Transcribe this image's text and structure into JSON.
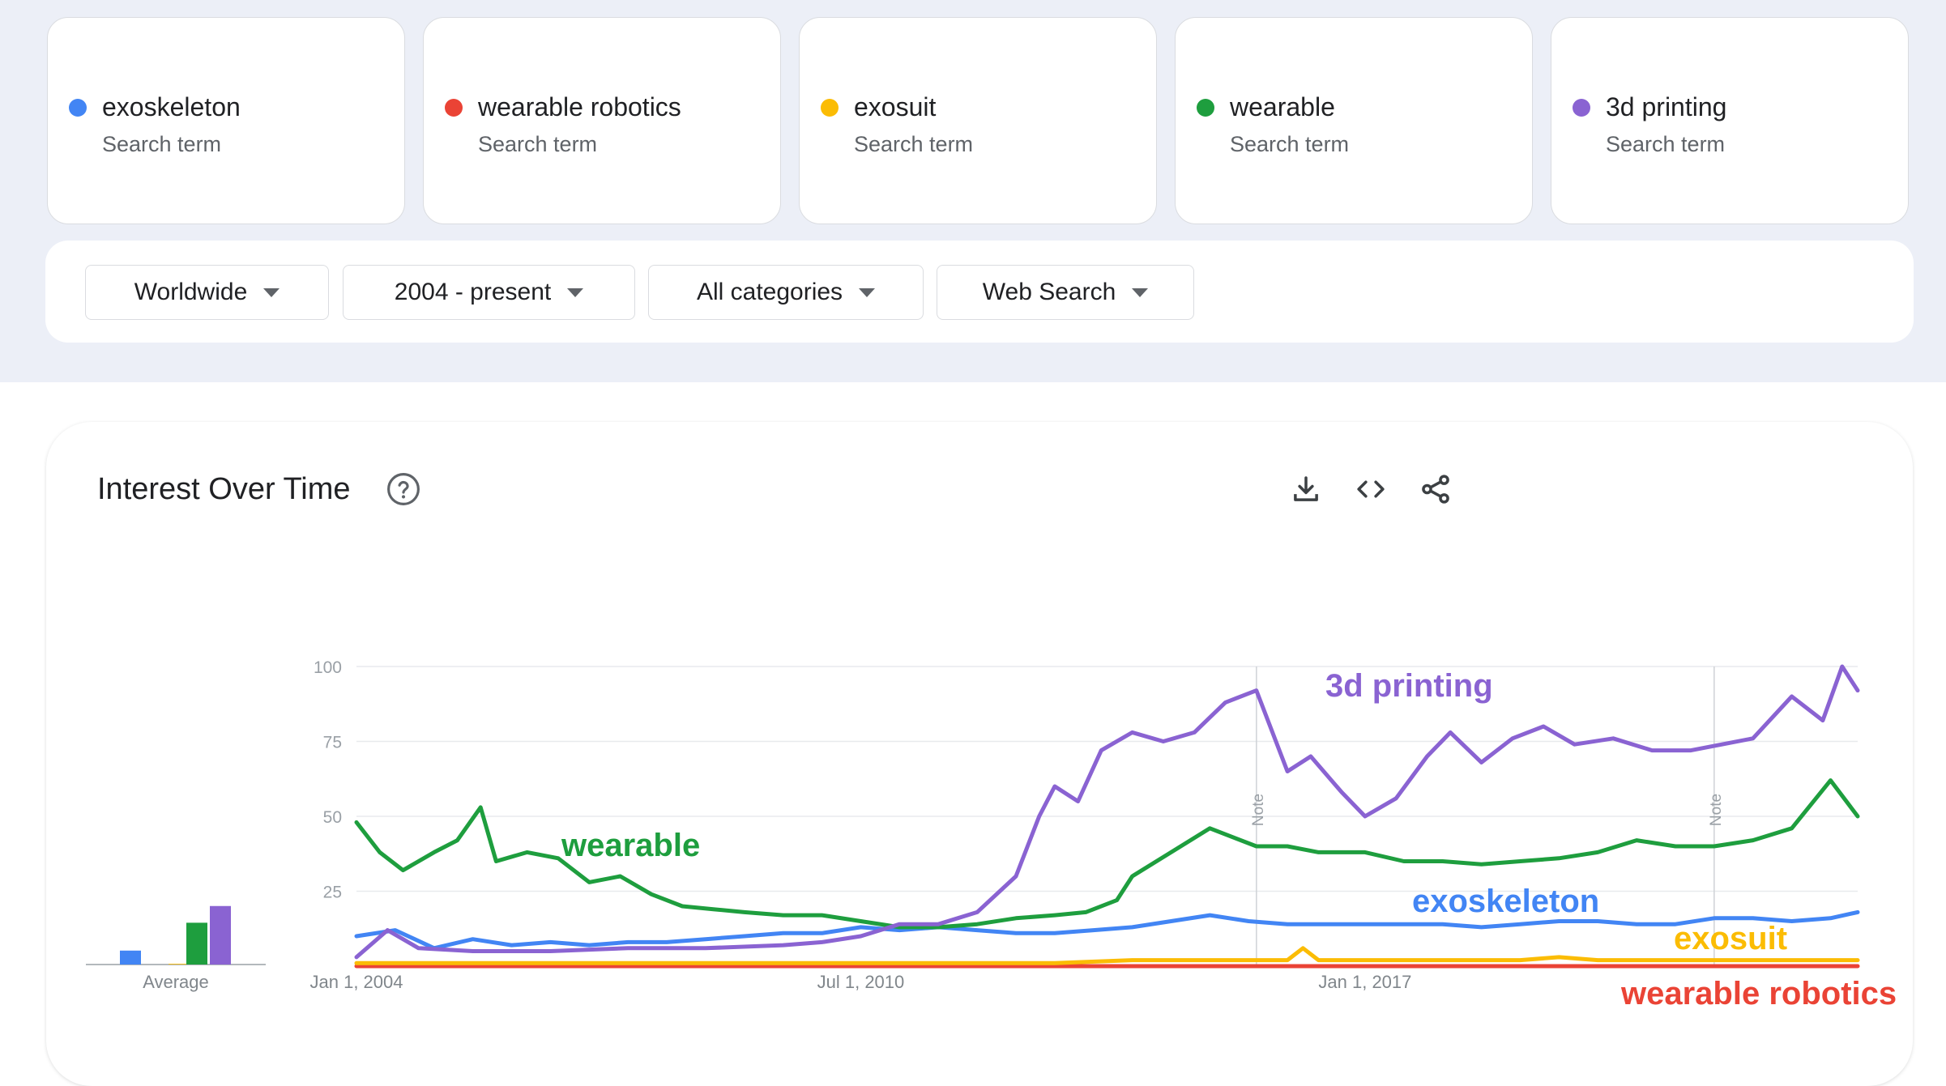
{
  "terms": [
    {
      "label": "exoskeleton",
      "sub": "Search term",
      "color": "#4285f4"
    },
    {
      "label": "wearable robotics",
      "sub": "Search term",
      "color": "#ea4335"
    },
    {
      "label": "exosuit",
      "sub": "Search term",
      "color": "#fbbc04"
    },
    {
      "label": "wearable",
      "sub": "Search term",
      "color": "#1e9e3e"
    },
    {
      "label": "3d printing",
      "sub": "Search term",
      "color": "#8a63d2"
    }
  ],
  "filters": {
    "region": "Worldwide",
    "time": "2004 - present",
    "category": "All categories",
    "search_type": "Web Search"
  },
  "panel": {
    "title": "Interest Over Time",
    "icons": [
      "help-icon",
      "download-icon",
      "embed-icon",
      "share-icon"
    ]
  },
  "chart_data": [
    {
      "type": "bar",
      "categories": [
        "exoskeleton",
        "wearable robotics",
        "exosuit",
        "wearable",
        "3d printing"
      ],
      "values": [
        10,
        0,
        0.5,
        30,
        42
      ],
      "xlabel": "Average",
      "colors": [
        "#4285f4",
        "#ea4335",
        "#fbbc04",
        "#1e9e3e",
        "#8a63d2"
      ]
    },
    {
      "type": "line",
      "y_ticks": [
        "100",
        "75",
        "50",
        "25"
      ],
      "ylim": [
        0,
        100
      ],
      "x_ticks": [
        "Jan 1, 2004",
        "Jul 1, 2010",
        "Jan 1, 2017"
      ],
      "x_tick_years": [
        2004,
        2010.5,
        2017
      ],
      "xlim": [
        2004,
        2023.35
      ],
      "notes": [
        {
          "label": "Note",
          "year": 2015.6
        },
        {
          "label": "Note",
          "year": 2021.5
        }
      ],
      "annotations": [
        {
          "text": "3d printing",
          "series": "3d printing"
        },
        {
          "text": "wearable",
          "series": "wearable"
        },
        {
          "text": "exoskeleton",
          "series": "exoskeleton"
        },
        {
          "text": "exosuit",
          "series": "exosuit"
        },
        {
          "text": "wearable robotics",
          "series": "wearable robotics"
        }
      ],
      "series": [
        {
          "name": "wearable",
          "color": "#1e9e3e",
          "points": [
            [
              2004,
              48
            ],
            [
              2004.3,
              38
            ],
            [
              2004.6,
              32
            ],
            [
              2005,
              38
            ],
            [
              2005.3,
              42
            ],
            [
              2005.6,
              53
            ],
            [
              2005.8,
              35
            ],
            [
              2006.2,
              38
            ],
            [
              2006.6,
              36
            ],
            [
              2007,
              28
            ],
            [
              2007.4,
              30
            ],
            [
              2007.8,
              24
            ],
            [
              2008.2,
              20
            ],
            [
              2008.6,
              19
            ],
            [
              2009,
              18
            ],
            [
              2009.5,
              17
            ],
            [
              2010,
              17
            ],
            [
              2010.5,
              15
            ],
            [
              2011,
              13
            ],
            [
              2011.5,
              13
            ],
            [
              2012,
              14
            ],
            [
              2012.5,
              16
            ],
            [
              2013,
              17
            ],
            [
              2013.4,
              18
            ],
            [
              2013.8,
              22
            ],
            [
              2014,
              30
            ],
            [
              2014.5,
              38
            ],
            [
              2015,
              46
            ],
            [
              2015.6,
              40
            ],
            [
              2016,
              40
            ],
            [
              2016.4,
              38
            ],
            [
              2017,
              38
            ],
            [
              2017.5,
              35
            ],
            [
              2018,
              35
            ],
            [
              2018.5,
              34
            ],
            [
              2019,
              35
            ],
            [
              2019.5,
              36
            ],
            [
              2020,
              38
            ],
            [
              2020.5,
              42
            ],
            [
              2021,
              40
            ],
            [
              2021.5,
              40
            ],
            [
              2022,
              42
            ],
            [
              2022.5,
              46
            ],
            [
              2023,
              62
            ],
            [
              2023.35,
              50
            ]
          ]
        },
        {
          "name": "3d printing",
          "color": "#8a63d2",
          "points": [
            [
              2004,
              3
            ],
            [
              2004.4,
              12
            ],
            [
              2004.8,
              6
            ],
            [
              2005.5,
              5
            ],
            [
              2006.5,
              5
            ],
            [
              2007.5,
              6
            ],
            [
              2008.5,
              6
            ],
            [
              2009.5,
              7
            ],
            [
              2010,
              8
            ],
            [
              2010.5,
              10
            ],
            [
              2011,
              14
            ],
            [
              2011.5,
              14
            ],
            [
              2012,
              18
            ],
            [
              2012.5,
              30
            ],
            [
              2012.8,
              50
            ],
            [
              2013,
              60
            ],
            [
              2013.3,
              55
            ],
            [
              2013.6,
              72
            ],
            [
              2014,
              78
            ],
            [
              2014.4,
              75
            ],
            [
              2014.8,
              78
            ],
            [
              2015.2,
              88
            ],
            [
              2015.6,
              92
            ],
            [
              2016,
              65
            ],
            [
              2016.3,
              70
            ],
            [
              2016.7,
              58
            ],
            [
              2017,
              50
            ],
            [
              2017.4,
              56
            ],
            [
              2017.8,
              70
            ],
            [
              2018.1,
              78
            ],
            [
              2018.5,
              68
            ],
            [
              2018.9,
              76
            ],
            [
              2019.3,
              80
            ],
            [
              2019.7,
              74
            ],
            [
              2020.2,
              76
            ],
            [
              2020.7,
              72
            ],
            [
              2021.2,
              72
            ],
            [
              2021.6,
              74
            ],
            [
              2022,
              76
            ],
            [
              2022.5,
              90
            ],
            [
              2022.9,
              82
            ],
            [
              2023.15,
              100
            ],
            [
              2023.35,
              92
            ]
          ]
        },
        {
          "name": "exoskeleton",
          "color": "#4285f4",
          "points": [
            [
              2004,
              10
            ],
            [
              2004.5,
              12
            ],
            [
              2005,
              6
            ],
            [
              2005.5,
              9
            ],
            [
              2006,
              7
            ],
            [
              2006.5,
              8
            ],
            [
              2007,
              7
            ],
            [
              2007.5,
              8
            ],
            [
              2008,
              8
            ],
            [
              2008.5,
              9
            ],
            [
              2009,
              10
            ],
            [
              2009.5,
              11
            ],
            [
              2010,
              11
            ],
            [
              2010.5,
              13
            ],
            [
              2011,
              12
            ],
            [
              2011.5,
              13
            ],
            [
              2012,
              12
            ],
            [
              2012.5,
              11
            ],
            [
              2013,
              11
            ],
            [
              2013.5,
              12
            ],
            [
              2014,
              13
            ],
            [
              2014.5,
              15
            ],
            [
              2015,
              17
            ],
            [
              2015.5,
              15
            ],
            [
              2016,
              14
            ],
            [
              2016.5,
              14
            ],
            [
              2017,
              14
            ],
            [
              2017.5,
              14
            ],
            [
              2018,
              14
            ],
            [
              2018.5,
              13
            ],
            [
              2019,
              14
            ],
            [
              2019.5,
              15
            ],
            [
              2020,
              15
            ],
            [
              2020.5,
              14
            ],
            [
              2021,
              14
            ],
            [
              2021.5,
              16
            ],
            [
              2022,
              16
            ],
            [
              2022.5,
              15
            ],
            [
              2023,
              16
            ],
            [
              2023.35,
              18
            ]
          ]
        },
        {
          "name": "exosuit",
          "color": "#fbbc04",
          "points": [
            [
              2004,
              1
            ],
            [
              2005,
              1
            ],
            [
              2006,
              1
            ],
            [
              2007,
              1
            ],
            [
              2008,
              1
            ],
            [
              2009,
              1
            ],
            [
              2010,
              1
            ],
            [
              2011,
              1
            ],
            [
              2012,
              1
            ],
            [
              2013,
              1
            ],
            [
              2014,
              2
            ],
            [
              2015,
              2
            ],
            [
              2016,
              2
            ],
            [
              2016.2,
              6
            ],
            [
              2016.4,
              2
            ],
            [
              2017,
              2
            ],
            [
              2018,
              2
            ],
            [
              2019,
              2
            ],
            [
              2019.5,
              3
            ],
            [
              2020,
              2
            ],
            [
              2021,
              2
            ],
            [
              2022,
              2
            ],
            [
              2023,
              2
            ],
            [
              2023.35,
              2
            ]
          ]
        },
        {
          "name": "wearable robotics",
          "color": "#ea4335",
          "points": [
            [
              2004,
              0
            ],
            [
              2023.35,
              0
            ]
          ]
        }
      ]
    }
  ]
}
